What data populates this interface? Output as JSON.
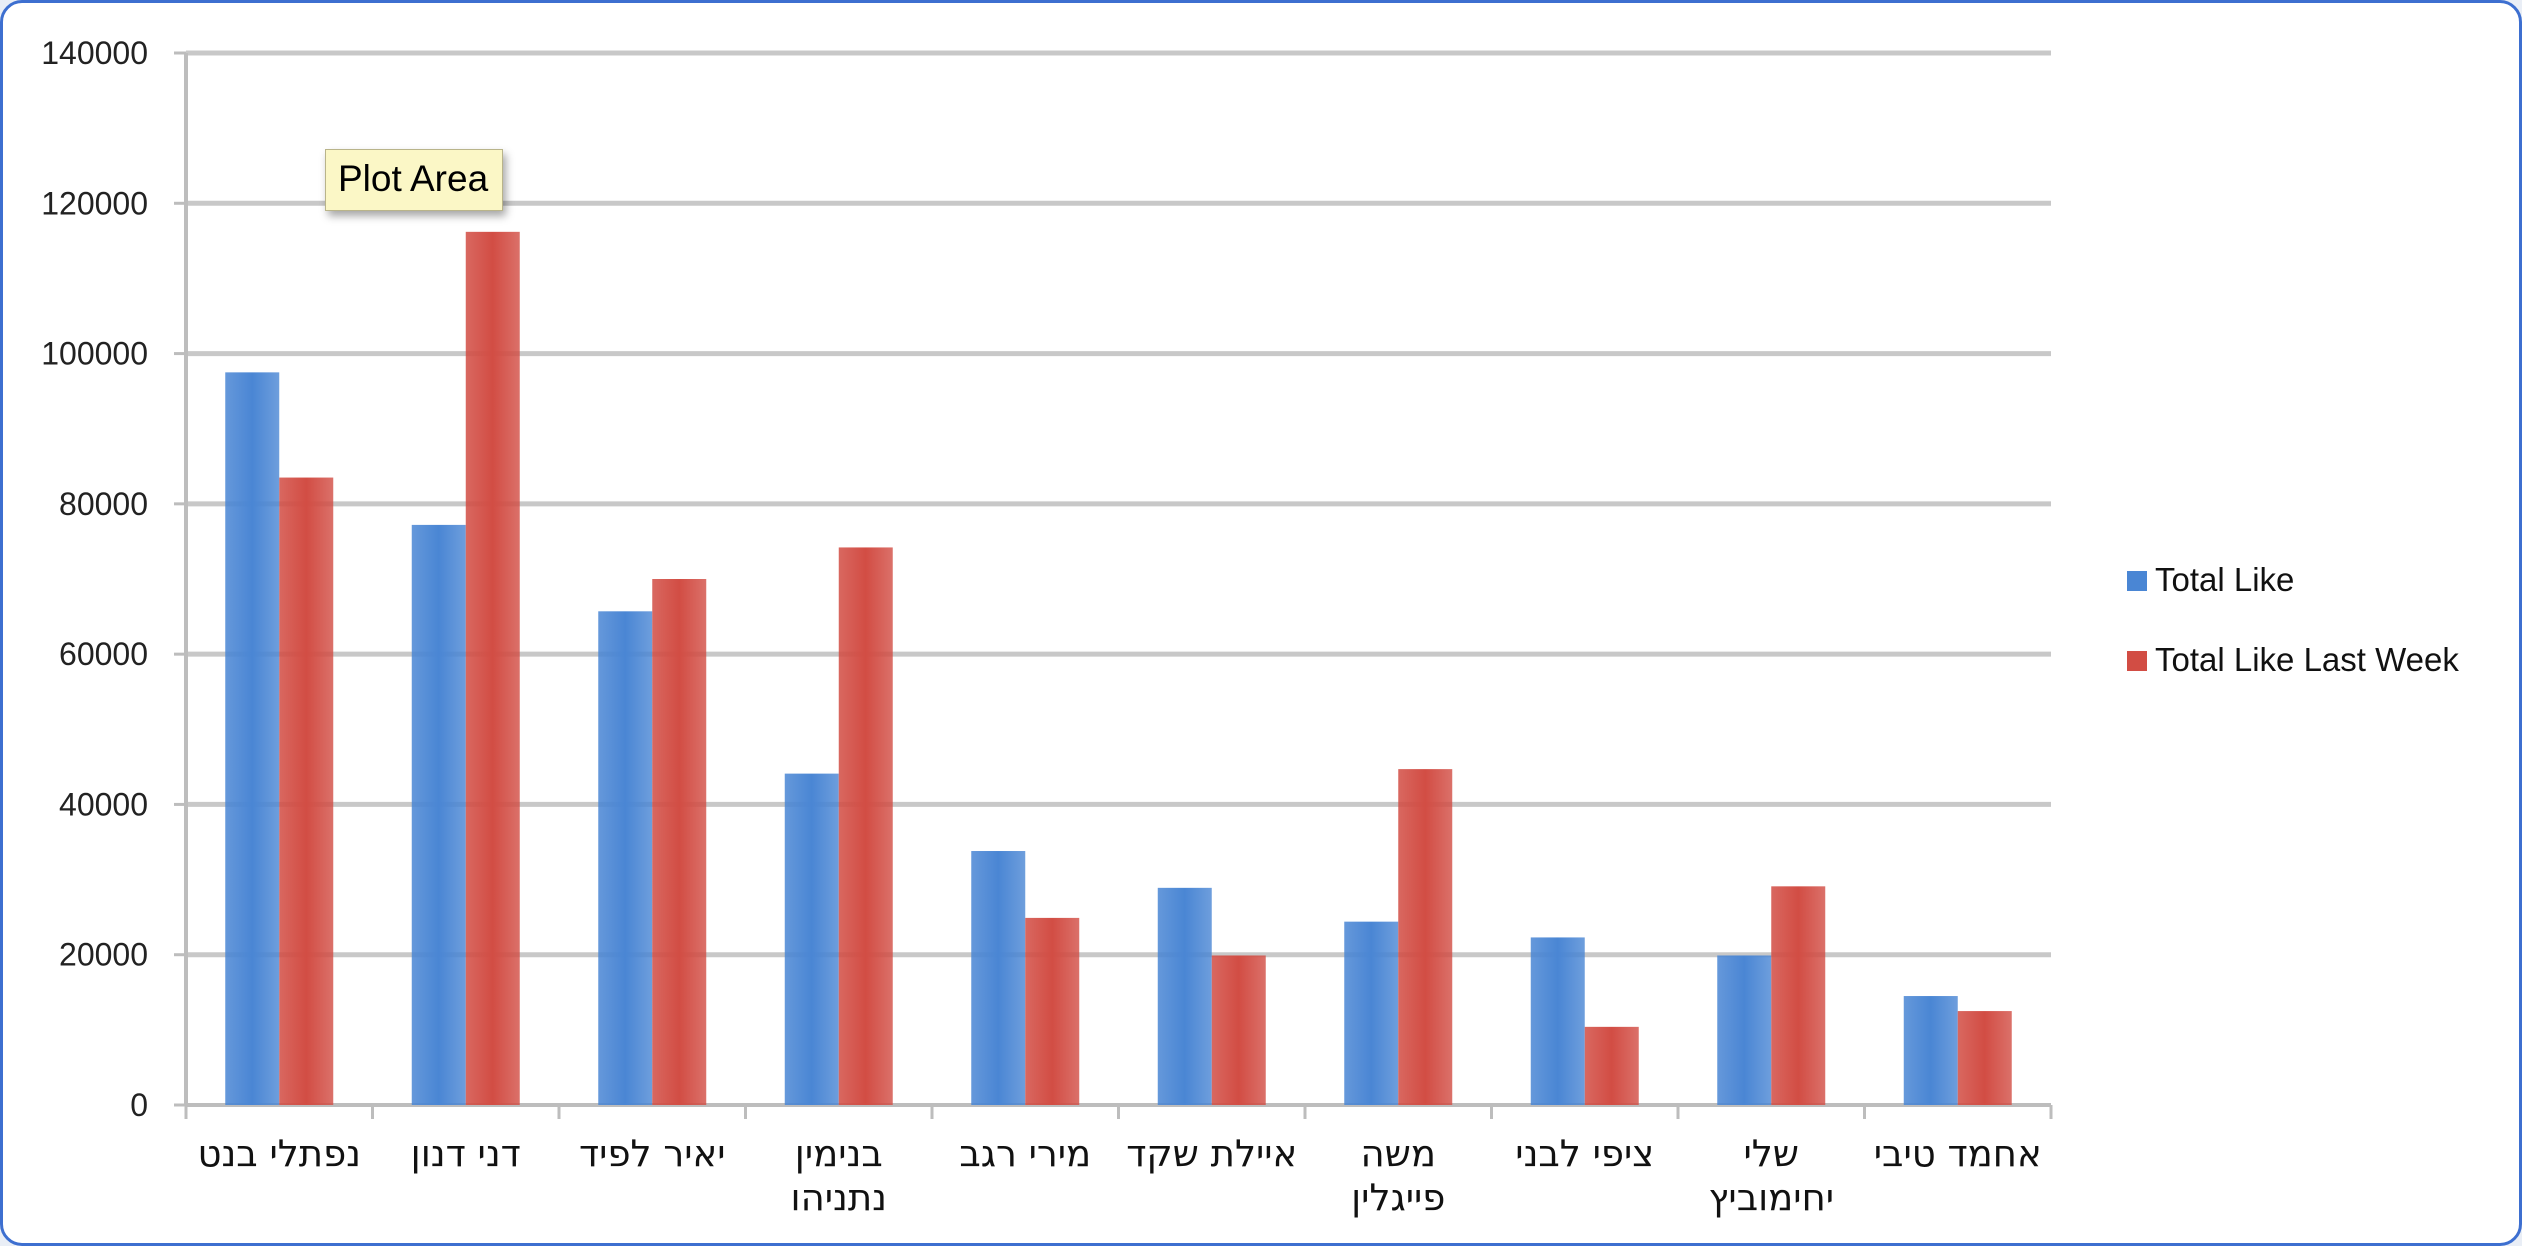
{
  "chart_data": {
    "type": "bar",
    "categories": [
      "נפתלי בנט",
      "דני דנון",
      "יאיר לפיד",
      "בנימין נתניהו",
      "מירי רגב",
      "איילת שקד",
      "משה פייגלין",
      "ציפי לבני",
      "שלי יחימוביץ",
      "אחמד טיבי"
    ],
    "category_lines": [
      [
        "נפתלי בנט"
      ],
      [
        "דני דנון"
      ],
      [
        "יאיר לפיד"
      ],
      [
        "בנימין",
        "נתניהו"
      ],
      [
        "מירי רגב"
      ],
      [
        "איילת שקד"
      ],
      [
        "משה",
        "פייגלין"
      ],
      [
        "ציפי לבני"
      ],
      [
        "שלי",
        "יחימוביץ"
      ],
      [
        "אחמד טיבי"
      ]
    ],
    "series": [
      {
        "name": "Total Like",
        "color": "#4a86d4",
        "values": [
          97500,
          77200,
          65700,
          44100,
          33800,
          28900,
          24400,
          22300,
          19900,
          14500
        ]
      },
      {
        "name": "Total Like Last Week",
        "color": "#d24d44",
        "values": [
          83500,
          116200,
          70000,
          74200,
          24900,
          19900,
          44700,
          10400,
          29100,
          12500
        ]
      }
    ],
    "ylim": [
      0,
      140000
    ],
    "yticks": [
      "0",
      "20000",
      "40000",
      "60000",
      "80000",
      "100000",
      "120000",
      "140000"
    ],
    "title": "",
    "xlabel": "",
    "ylabel": "",
    "grid": true,
    "legend_position": "right"
  },
  "tooltip": {
    "text": "Plot Area"
  }
}
